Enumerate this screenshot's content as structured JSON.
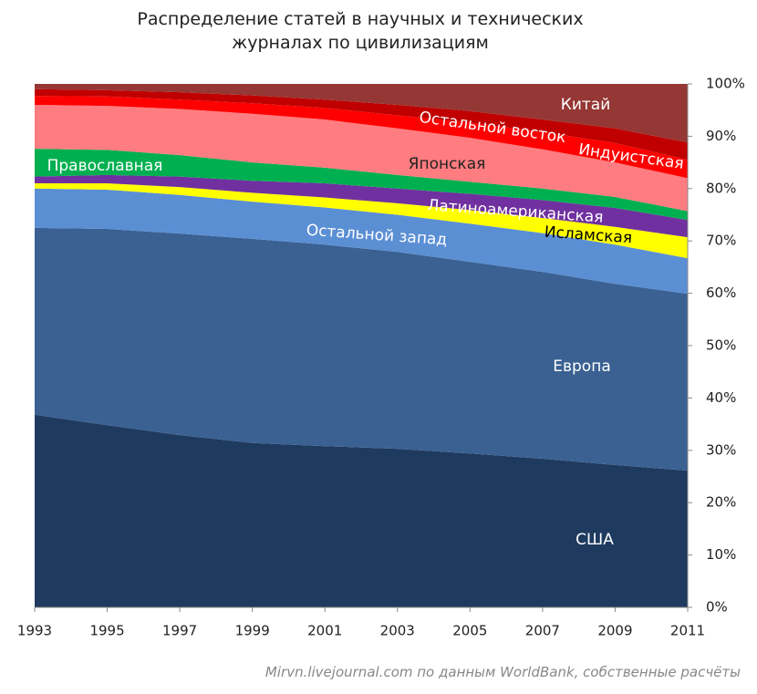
{
  "chart_data": {
    "type": "stacked_area",
    "title": "Распределение статей в научных и технических журналах по цивилизациям",
    "source": "Mirvn.livejournal.com по данным WorldBank, собственные расчёты",
    "x": [
      1993,
      1995,
      1997,
      1999,
      2001,
      2003,
      2005,
      2007,
      2009,
      2011
    ],
    "xlim": [
      1993,
      2011
    ],
    "xticks": [
      1993,
      1995,
      1997,
      1999,
      2001,
      2003,
      2005,
      2007,
      2009,
      2011
    ],
    "ylim": [
      0,
      100
    ],
    "yticks": [
      {
        "value": 0,
        "label": "0%"
      },
      {
        "value": 10,
        "label": "10%"
      },
      {
        "value": 20,
        "label": "20%"
      },
      {
        "value": 30,
        "label": "30%"
      },
      {
        "value": 40,
        "label": "40%"
      },
      {
        "value": 50,
        "label": "50%"
      },
      {
        "value": 60,
        "label": "60%"
      },
      {
        "value": 70,
        "label": "70%"
      },
      {
        "value": 80,
        "label": "80%"
      },
      {
        "value": 90,
        "label": "90%"
      },
      {
        "value": 100,
        "label": "100%"
      }
    ],
    "y_axis_side": "right",
    "grid": false,
    "series": [
      {
        "name": "США",
        "color": "#1f3a5f",
        "values": [
          36.8,
          34.8,
          32.9,
          31.4,
          30.8,
          30.3,
          29.4,
          28.4,
          27.2,
          26.1
        ]
      },
      {
        "name": "Европа",
        "color": "#3a6192",
        "values": [
          35.7,
          37.5,
          38.5,
          39.0,
          38.5,
          37.6,
          36.6,
          35.7,
          34.6,
          33.8
        ]
      },
      {
        "name": "Остальной запад",
        "color": "#5b8fd4",
        "values": [
          7.5,
          7.5,
          7.4,
          7.1,
          7.1,
          7.1,
          7.3,
          7.4,
          7.5,
          6.8
        ]
      },
      {
        "name": "Исламская",
        "color": "#ffff00",
        "values": [
          1.0,
          1.2,
          1.5,
          1.7,
          1.9,
          2.2,
          2.6,
          2.9,
          3.4,
          4.0
        ]
      },
      {
        "name": "Латиноамериканская",
        "color": "#7030a0",
        "values": [
          1.3,
          1.6,
          2.0,
          2.3,
          2.7,
          2.8,
          3.1,
          3.4,
          3.6,
          3.3
        ]
      },
      {
        "name": "Православная",
        "color": "#00b050",
        "values": [
          5.3,
          4.8,
          4.1,
          3.5,
          3.0,
          2.6,
          2.3,
          2.2,
          2.1,
          1.7
        ]
      },
      {
        "name": "Японская",
        "color": "#ff7c80",
        "values": [
          8.4,
          8.4,
          8.8,
          9.3,
          9.2,
          8.9,
          8.4,
          7.5,
          6.6,
          6.3
        ]
      },
      {
        "name": "Индуистская",
        "color": "#ff0000",
        "values": [
          1.7,
          1.8,
          1.8,
          2.0,
          2.2,
          2.5,
          2.9,
          3.3,
          3.7,
          3.5
        ]
      },
      {
        "name": "Остальной восток",
        "color": "#c00000",
        "values": [
          1.3,
          1.2,
          1.4,
          1.5,
          1.6,
          2.0,
          2.2,
          2.4,
          2.8,
          3.3
        ]
      },
      {
        "name": "Китай",
        "color": "#953735",
        "values": [
          1.0,
          1.2,
          1.6,
          2.2,
          3.0,
          4.0,
          5.2,
          6.8,
          8.5,
          11.2
        ]
      }
    ]
  }
}
